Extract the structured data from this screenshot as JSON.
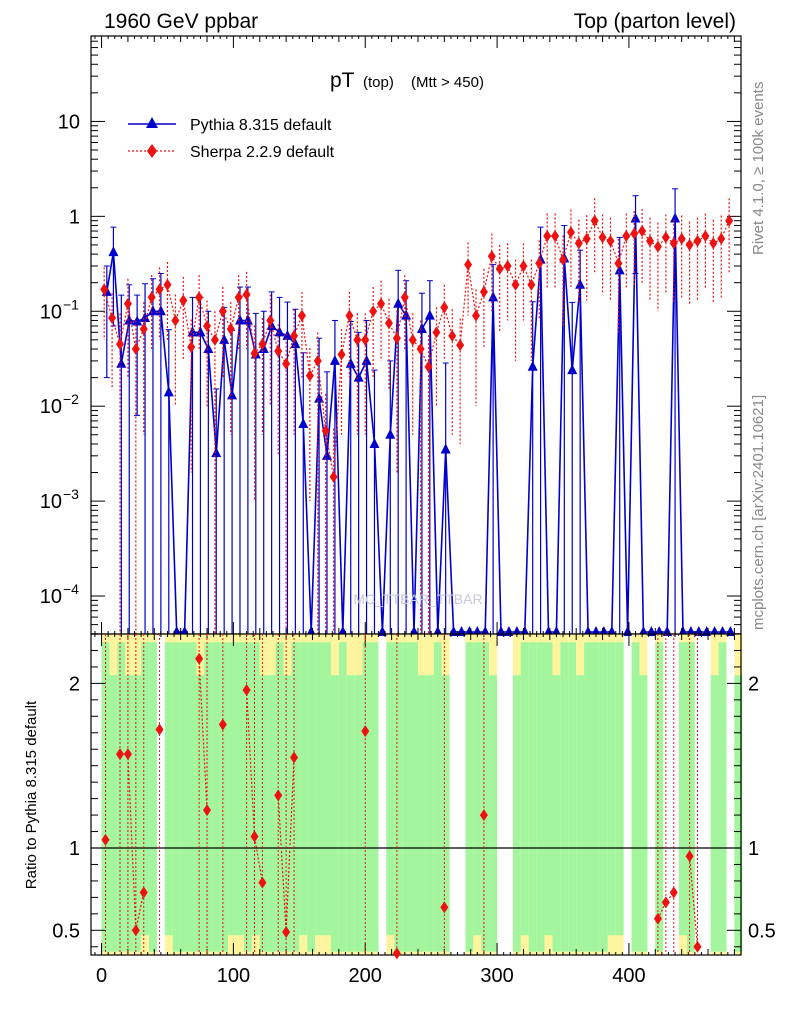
{
  "header": {
    "left": "1960 GeV ppbar",
    "right": "Top (parton level)"
  },
  "side": {
    "rivet": "Rivet 4.1.0, ≥ 100k events",
    "mcplots": "mcplots.cern.ch [arXiv:2401.10621]"
  },
  "watermark": "MC_TTBAR_TTBAR",
  "chart_data": [
    {
      "type": "line",
      "title_main": "pT",
      "title_sub": "(top)",
      "title_cut": "(Mtt > 450)",
      "yscale": "log",
      "xlim": [
        -8,
        485
      ],
      "ylim_log10": [
        -4.4,
        1.9
      ],
      "yticks": [
        {
          "v": 10,
          "label": "10",
          "exp": ""
        },
        {
          "v": 1,
          "label": "1",
          "exp": ""
        },
        {
          "v": 0.1,
          "label": "10",
          "exp": "−1"
        },
        {
          "v": 0.01,
          "label": "10",
          "exp": "−2"
        },
        {
          "v": 0.001,
          "label": "10",
          "exp": "−3"
        },
        {
          "v": 0.0001,
          "label": "10",
          "exp": "−4"
        }
      ],
      "series": [
        {
          "name": "Pythia 8.315 default",
          "color": "#0000cc",
          "marker": "triangle",
          "x": [
            4,
            9,
            15,
            21,
            27,
            33,
            39,
            45,
            51,
            57,
            63,
            69,
            75,
            81,
            87,
            93,
            99,
            105,
            111,
            117,
            123,
            129,
            135,
            141,
            147,
            153,
            159,
            165,
            171,
            177,
            183,
            189,
            195,
            201,
            207,
            213,
            219,
            225,
            231,
            237,
            243,
            249,
            255,
            261,
            267,
            273,
            279,
            285,
            291,
            297,
            303,
            309,
            315,
            321,
            327,
            333,
            339,
            345,
            351,
            357,
            363,
            369,
            375,
            381,
            387,
            393,
            399,
            405,
            411,
            417,
            423,
            429,
            435,
            441,
            447,
            453,
            459,
            465,
            471,
            477
          ],
          "y": [
            0.16,
            0.42,
            0.028,
            0.08,
            0.078,
            0.085,
            0.1,
            0.1,
            0.014,
            0,
            0,
            0.06,
            0.06,
            0.04,
            0.0032,
            0.05,
            0.013,
            0.08,
            0.08,
            0.035,
            0.04,
            0.07,
            0.06,
            0.055,
            0.045,
            0.0065,
            0,
            0.012,
            0.003,
            0.03,
            0,
            0.028,
            0.02,
            0.03,
            0.004,
            0,
            0.005,
            0.12,
            0.09,
            0,
            0.065,
            0.09,
            0,
            0.0035,
            0,
            0,
            0,
            0,
            0,
            0.14,
            0,
            0,
            0,
            0,
            0.026,
            0.35,
            0,
            0,
            0.36,
            0.024,
            0.19,
            0,
            0,
            0,
            0,
            0.27,
            0,
            0.95,
            0,
            0,
            0,
            0,
            0.95,
            0,
            0,
            0,
            0,
            0,
            0,
            0
          ],
          "yerr": [
            0.14,
            0.35,
            0.12,
            0.11,
            0.07,
            0.11,
            0.12,
            0.15,
            0.05,
            0,
            0,
            0.08,
            0.08,
            0.06,
            0.012,
            0.06,
            0.05,
            0.1,
            0.1,
            0.06,
            0.06,
            0.09,
            0.08,
            0.07,
            0.06,
            0.03,
            0,
            0.04,
            0.02,
            0.05,
            0,
            0.05,
            0.04,
            0.05,
            0.02,
            0,
            0.025,
            0.15,
            0.12,
            0,
            0.09,
            0.12,
            0,
            0.025,
            0,
            0,
            0,
            0,
            0,
            0.17,
            0,
            0,
            0,
            0,
            0.1,
            0.42,
            0,
            0,
            0.44,
            0.1,
            0.25,
            0,
            0,
            0,
            0,
            0.33,
            0,
            0.7,
            0,
            0,
            0,
            0,
            1.0,
            0,
            0,
            0,
            0,
            0,
            0,
            0
          ]
        },
        {
          "name": "Sherpa 2.2.9 default",
          "color": "#ee1111",
          "marker": "diamond",
          "x": [
            2,
            8,
            14,
            20,
            26,
            32,
            38,
            44,
            50,
            56,
            62,
            68,
            74,
            80,
            86,
            92,
            98,
            104,
            110,
            116,
            122,
            128,
            134,
            140,
            146,
            152,
            158,
            164,
            170,
            176,
            182,
            188,
            194,
            200,
            206,
            212,
            218,
            224,
            230,
            236,
            242,
            248,
            254,
            260,
            266,
            272,
            278,
            284,
            290,
            296,
            302,
            308,
            314,
            320,
            326,
            332,
            338,
            344,
            350,
            356,
            362,
            368,
            374,
            380,
            386,
            392,
            398,
            404,
            410,
            416,
            422,
            428,
            434,
            440,
            446,
            452,
            458,
            464,
            470,
            476
          ],
          "y": [
            0.17,
            0.085,
            0.045,
            0.12,
            0.04,
            0.065,
            0.14,
            0.17,
            0.19,
            0.08,
            0.13,
            0.042,
            0.14,
            0.07,
            0.05,
            0.1,
            0.065,
            0.14,
            0.15,
            0.036,
            0.045,
            0.08,
            0.038,
            0.028,
            0.055,
            0.09,
            0.021,
            0.03,
            0.0055,
            0.0018,
            0.035,
            0.09,
            0.05,
            0.05,
            0.1,
            0.12,
            0.075,
            0.052,
            0.14,
            0.05,
            0.04,
            0.026,
            0.06,
            0.11,
            0.055,
            0.044,
            0.31,
            0.09,
            0.16,
            0.38,
            0.28,
            0.3,
            0.19,
            0.3,
            0.19,
            0.32,
            0.62,
            0.62,
            0.35,
            0.68,
            0.52,
            0.58,
            0.9,
            0.6,
            0.55,
            0.32,
            0.62,
            0.66,
            0.7,
            0.55,
            0.48,
            0.6,
            0.52,
            0.58,
            0.5,
            0.55,
            0.62,
            0.52,
            0.58,
            0.9
          ],
          "yerr": [
            0.12,
            0.07,
            0.05,
            0.1,
            0.04,
            0.06,
            0.1,
            0.12,
            0.14,
            0.07,
            0.1,
            0.04,
            0.1,
            0.06,
            0.05,
            0.08,
            0.06,
            0.1,
            0.11,
            0.035,
            0.04,
            0.07,
            0.035,
            0.03,
            0.05,
            0.07,
            0.02,
            0.03,
            0.008,
            0.004,
            0.03,
            0.07,
            0.045,
            0.045,
            0.08,
            0.09,
            0.06,
            0.05,
            0.1,
            0.045,
            0.04,
            0.03,
            0.05,
            0.08,
            0.05,
            0.04,
            0.22,
            0.08,
            0.12,
            0.28,
            0.22,
            0.22,
            0.16,
            0.22,
            0.16,
            0.24,
            0.45,
            0.45,
            0.28,
            0.5,
            0.4,
            0.45,
            0.65,
            0.45,
            0.42,
            0.26,
            0.45,
            0.48,
            0.5,
            0.42,
            0.38,
            0.45,
            0.4,
            0.44,
            0.38,
            0.42,
            0.45,
            0.4,
            0.44,
            0.65
          ]
        }
      ]
    },
    {
      "type": "line",
      "ylabel": "Ratio to Pythia 8.315 default",
      "xlim": [
        -8,
        485
      ],
      "ylim": [
        0.35,
        2.3
      ],
      "xticks": [
        0,
        100,
        200,
        300,
        400
      ],
      "yticks": [
        0.5,
        1,
        2
      ],
      "reference_line": 1,
      "ratio_x": [
        3,
        8,
        14,
        20,
        26,
        32,
        38,
        44,
        50,
        56,
        62,
        68,
        74,
        80,
        86,
        92,
        98,
        104,
        110,
        116,
        122,
        128,
        134,
        140,
        146,
        152,
        158,
        164,
        170,
        176,
        182,
        188,
        194,
        200,
        206,
        212,
        218,
        224,
        230,
        236,
        242,
        248,
        254,
        260,
        266,
        272,
        278,
        284,
        290,
        296,
        302,
        308,
        314,
        320,
        326,
        332,
        338,
        344,
        350,
        356,
        362,
        368,
        374,
        380,
        386,
        392,
        398,
        404,
        410,
        416,
        422,
        428,
        434,
        440,
        446,
        452,
        458,
        464,
        470,
        476
      ],
      "ratio_y": [
        1.05,
        0,
        1.57,
        1.57,
        0.5,
        0.73,
        0,
        1.72,
        0,
        0,
        0,
        0,
        2.15,
        1.23,
        0,
        1.75,
        0,
        0,
        1.96,
        1.07,
        0.79,
        0,
        1.32,
        0.49,
        1.55,
        0,
        0,
        0,
        0,
        0,
        0,
        0,
        0,
        1.71,
        0,
        0,
        0,
        0.36,
        0,
        0,
        0,
        0,
        0,
        0.64,
        0,
        0,
        0,
        0,
        1.2,
        0,
        0,
        0,
        0,
        0,
        0,
        0,
        0,
        0,
        0,
        0,
        0,
        0,
        0,
        0,
        0,
        0,
        0,
        0,
        0,
        0,
        0.57,
        0.67,
        0.73,
        0,
        0.95,
        0.4,
        0,
        0,
        0,
        0
      ],
      "band_gap_x": [
        43,
        215,
        270,
        306,
        400,
        415,
        432,
        452,
        461,
        479
      ]
    }
  ]
}
